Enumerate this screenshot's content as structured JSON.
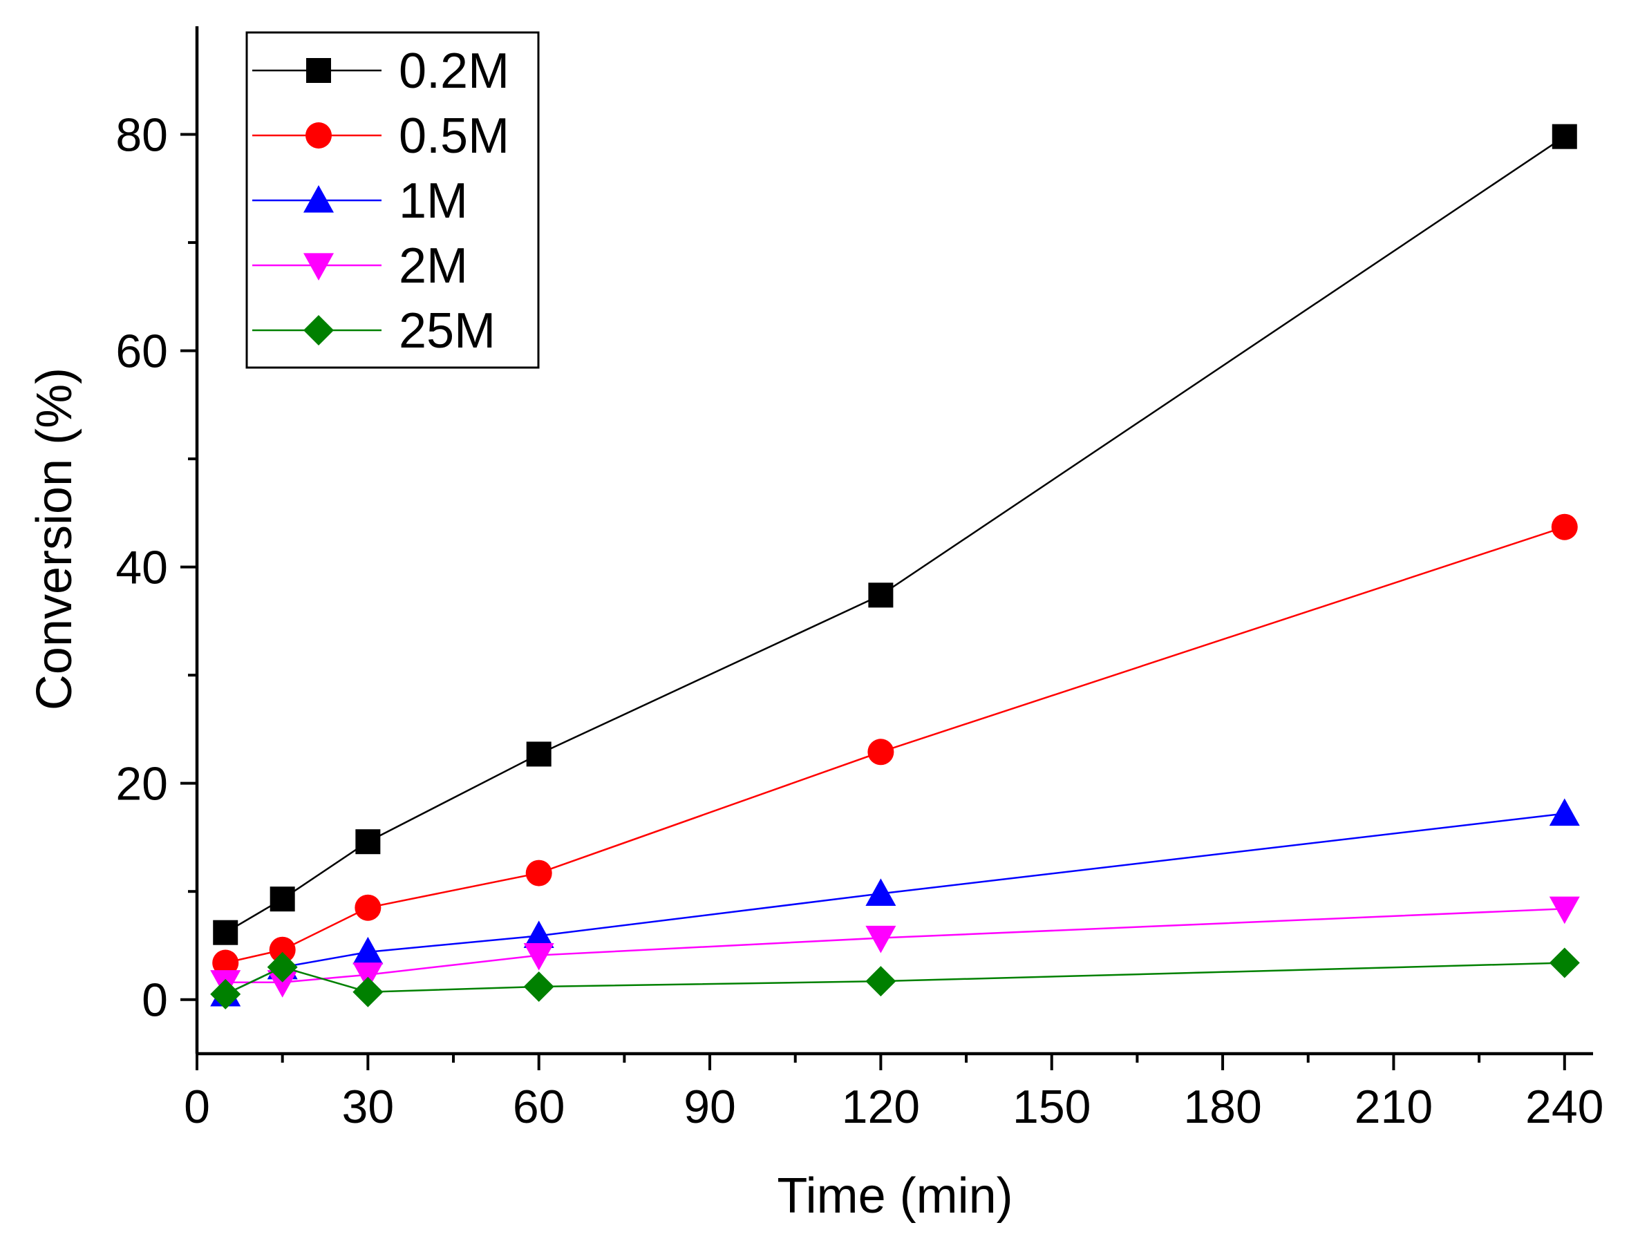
{
  "chart_data": {
    "type": "line",
    "title": "",
    "xlabel": "Time (min)",
    "ylabel": "Conversion (%)",
    "xlim": [
      0,
      245
    ],
    "ylim": [
      -5,
      90
    ],
    "x_ticks": [
      0,
      30,
      60,
      90,
      120,
      150,
      180,
      210,
      240
    ],
    "x_tick_labels": [
      "0",
      "30",
      "60",
      "90",
      "120",
      "150",
      "180",
      "210",
      "240"
    ],
    "x_minor_ticks": [
      15,
      45,
      75,
      105,
      135,
      165,
      195,
      225
    ],
    "y_ticks": [
      0,
      20,
      40,
      60,
      80
    ],
    "y_tick_labels": [
      "0",
      "20",
      "40",
      "60",
      "80"
    ],
    "y_minor_ticks": [
      10,
      30,
      50,
      70
    ],
    "grid": false,
    "legend_position": "top-left",
    "x": [
      5,
      15,
      30,
      60,
      120,
      240
    ],
    "series": [
      {
        "name": "0.2M",
        "color": "#000000",
        "marker": "square",
        "values": [
          6.2,
          9.3,
          14.6,
          22.7,
          37.4,
          79.8
        ]
      },
      {
        "name": "0.5M",
        "color": "#ff0000",
        "marker": "circle",
        "values": [
          3.4,
          4.6,
          8.5,
          11.7,
          22.9,
          43.7
        ]
      },
      {
        "name": "1M",
        "color": "#0000ff",
        "marker": "triangle-up",
        "values": [
          0.5,
          3.0,
          4.4,
          5.9,
          9.8,
          17.2
        ]
      },
      {
        "name": "2M",
        "color": "#ff00ff",
        "marker": "triangle-down",
        "values": [
          1.6,
          1.6,
          2.3,
          4.1,
          5.7,
          8.4
        ]
      },
      {
        "name": "25M",
        "color": "#008000",
        "marker": "diamond",
        "values": [
          0.5,
          3.0,
          0.7,
          1.2,
          1.7,
          3.4
        ]
      }
    ]
  }
}
